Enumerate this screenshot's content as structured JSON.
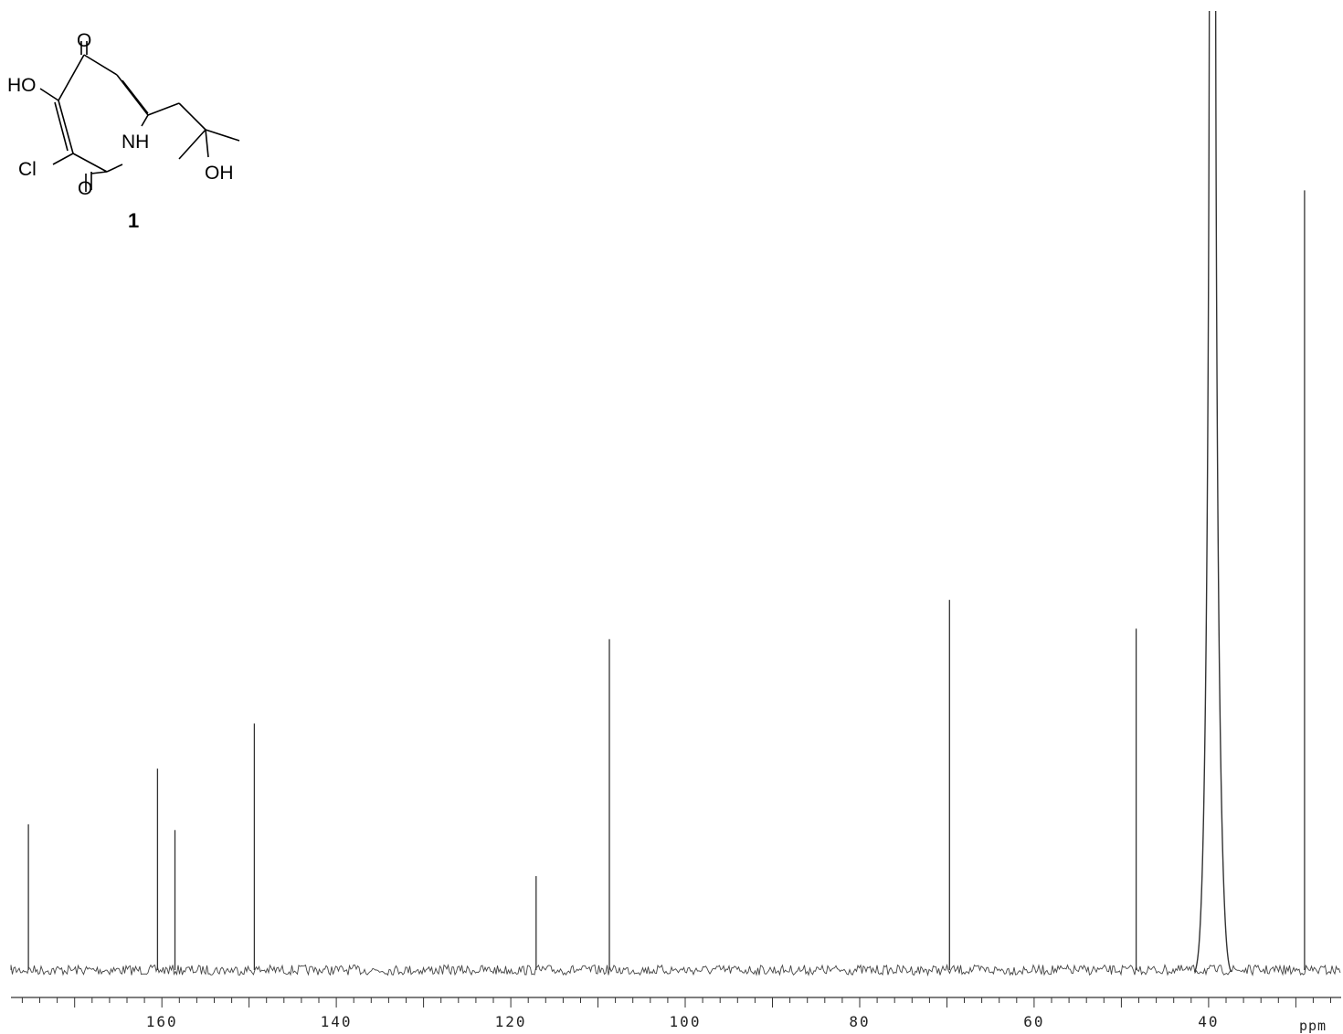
{
  "chart_data": {
    "type": "line",
    "title": "",
    "xlabel": "ppm",
    "ylabel": "",
    "x_axis_reversed": true,
    "xlim": [
      177.3,
      24.8
    ],
    "ylim": [
      0,
      1
    ],
    "grid": false,
    "x_tick_labels": [
      {
        "value": 160,
        "text": "160"
      },
      {
        "value": 140,
        "text": "140"
      },
      {
        "value": 120,
        "text": "120"
      },
      {
        "value": 100,
        "text": "100"
      },
      {
        "value": 80,
        "text": "80"
      },
      {
        "value": 60,
        "text": "60"
      },
      {
        "value": 40,
        "text": "40"
      }
    ],
    "minor_tick_step": 2,
    "series": [
      {
        "peaks": [
          {
            "ppm": 175.3,
            "intensity": 0.152
          },
          {
            "ppm": 160.5,
            "intensity": 0.21
          },
          {
            "ppm": 158.5,
            "intensity": 0.146
          },
          {
            "ppm": 149.4,
            "intensity": 0.257
          },
          {
            "ppm": 117.1,
            "intensity": 0.098
          },
          {
            "ppm": 108.7,
            "intensity": 0.345
          },
          {
            "ppm": 69.7,
            "intensity": 0.386
          },
          {
            "ppm": 48.3,
            "intensity": 0.356
          },
          {
            "ppm": 39.5,
            "intensity": 1.0
          },
          {
            "ppm": 29.0,
            "intensity": 0.813
          }
        ]
      }
    ]
  },
  "structure": {
    "atoms": {
      "o_top": "O",
      "ho": "HO",
      "cl": "Cl",
      "nh": "NH",
      "o_bottom": "O",
      "oh": "OH"
    },
    "compound_number": "1"
  }
}
